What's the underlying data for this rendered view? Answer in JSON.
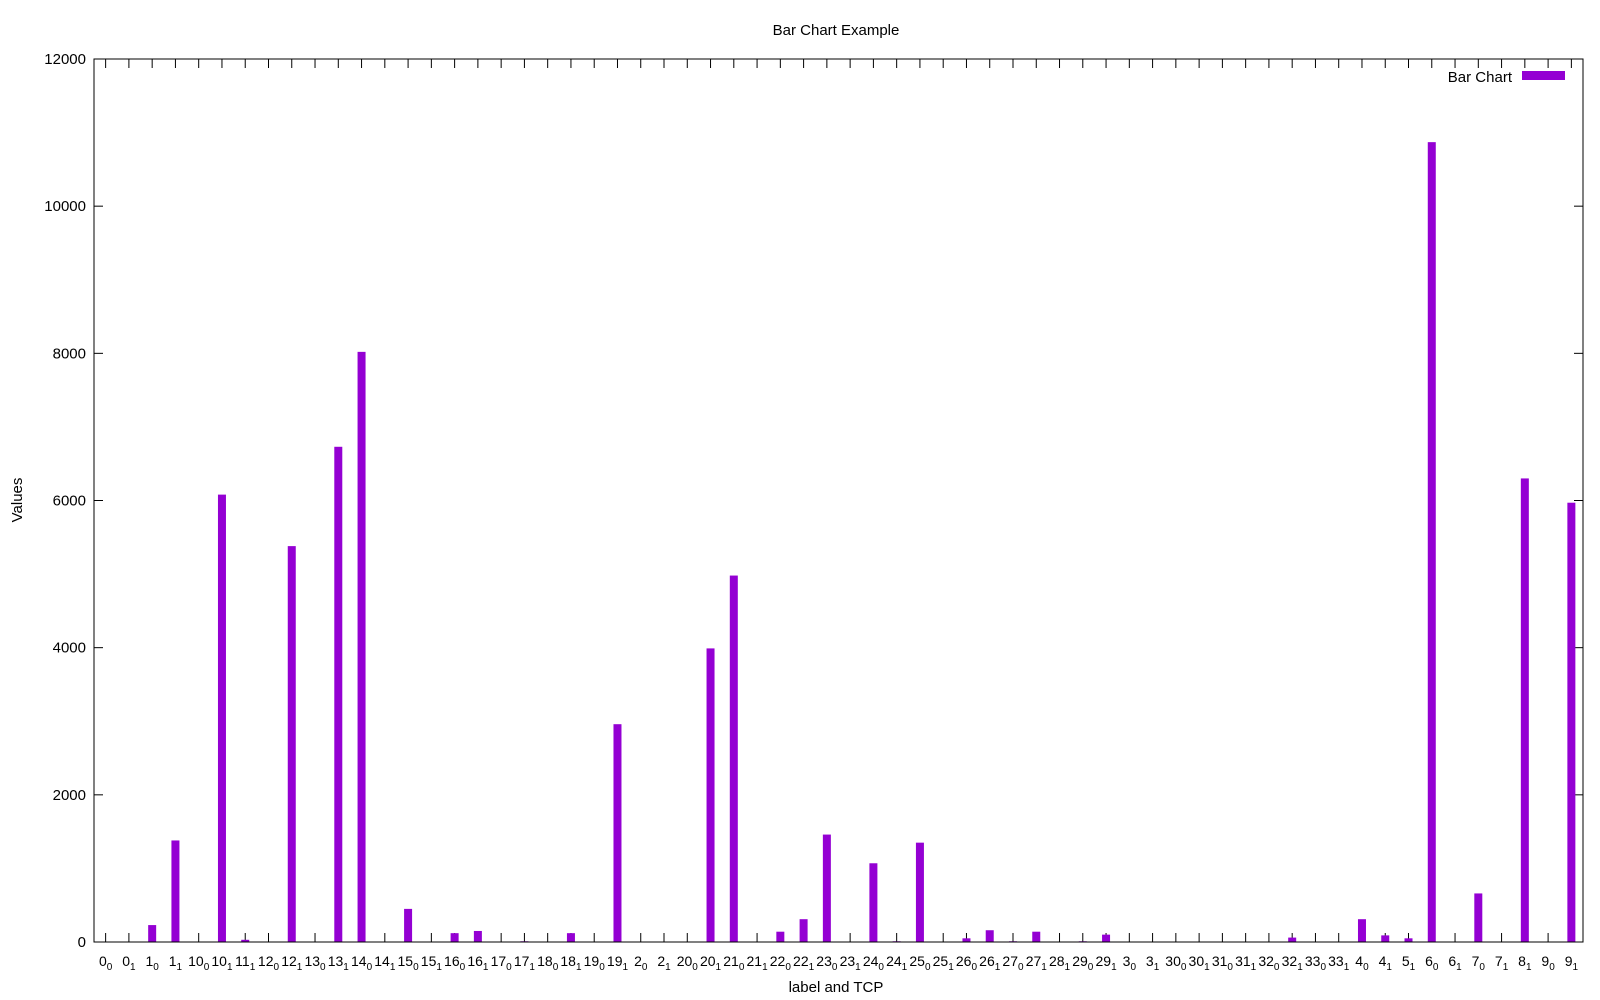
{
  "chart_data": {
    "type": "bar",
    "title": "Bar Chart Example",
    "xlabel": "label and TCP",
    "ylabel": "Values",
    "ylim": [
      0,
      12000
    ],
    "yticks": [
      0,
      2000,
      4000,
      6000,
      8000,
      10000,
      12000
    ],
    "grid": false,
    "legend_position": "top-right",
    "color": "#9400D3",
    "categories": [
      [
        "0",
        "0"
      ],
      [
        "0",
        "1"
      ],
      [
        "1",
        "0"
      ],
      [
        "1",
        "1"
      ],
      [
        "10",
        "0"
      ],
      [
        "10",
        "1"
      ],
      [
        "11",
        "1"
      ],
      [
        "12",
        "0"
      ],
      [
        "12",
        "1"
      ],
      [
        "13",
        "0"
      ],
      [
        "13",
        "1"
      ],
      [
        "14",
        "0"
      ],
      [
        "14",
        "1"
      ],
      [
        "15",
        "0"
      ],
      [
        "15",
        "1"
      ],
      [
        "16",
        "0"
      ],
      [
        "16",
        "1"
      ],
      [
        "17",
        "0"
      ],
      [
        "17",
        "1"
      ],
      [
        "18",
        "0"
      ],
      [
        "18",
        "1"
      ],
      [
        "19",
        "0"
      ],
      [
        "19",
        "1"
      ],
      [
        "2",
        "0"
      ],
      [
        "2",
        "1"
      ],
      [
        "20",
        "0"
      ],
      [
        "20",
        "1"
      ],
      [
        "21",
        "0"
      ],
      [
        "21",
        "1"
      ],
      [
        "22",
        "0"
      ],
      [
        "22",
        "1"
      ],
      [
        "23",
        "0"
      ],
      [
        "23",
        "1"
      ],
      [
        "24",
        "0"
      ],
      [
        "24",
        "1"
      ],
      [
        "25",
        "0"
      ],
      [
        "25",
        "1"
      ],
      [
        "26",
        "0"
      ],
      [
        "26",
        "1"
      ],
      [
        "27",
        "0"
      ],
      [
        "27",
        "1"
      ],
      [
        "28",
        "1"
      ],
      [
        "29",
        "0"
      ],
      [
        "29",
        "1"
      ],
      [
        "3",
        "0"
      ],
      [
        "3",
        "1"
      ],
      [
        "30",
        "0"
      ],
      [
        "30",
        "1"
      ],
      [
        "31",
        "0"
      ],
      [
        "31",
        "1"
      ],
      [
        "32",
        "0"
      ],
      [
        "32",
        "1"
      ],
      [
        "33",
        "0"
      ],
      [
        "33",
        "1"
      ],
      [
        "4",
        "0"
      ],
      [
        "4",
        "1"
      ],
      [
        "5",
        "1"
      ],
      [
        "6",
        "0"
      ],
      [
        "6",
        "1"
      ],
      [
        "7",
        "0"
      ],
      [
        "7",
        "1"
      ],
      [
        "8",
        "1"
      ],
      [
        "9",
        "0"
      ],
      [
        "9",
        "1"
      ]
    ],
    "series": [
      {
        "name": "Bar Chart",
        "values": [
          0,
          0,
          230,
          1380,
          0,
          6080,
          30,
          0,
          5380,
          0,
          6730,
          8020,
          0,
          450,
          0,
          120,
          150,
          0,
          10,
          0,
          120,
          0,
          2960,
          0,
          0,
          0,
          3990,
          4980,
          0,
          140,
          310,
          1460,
          0,
          1070,
          10,
          1350,
          0,
          50,
          160,
          10,
          140,
          0,
          10,
          100,
          0,
          0,
          0,
          0,
          0,
          0,
          0,
          60,
          0,
          0,
          310,
          90,
          50,
          10870,
          0,
          660,
          0,
          6300,
          0,
          5970
        ]
      }
    ]
  }
}
